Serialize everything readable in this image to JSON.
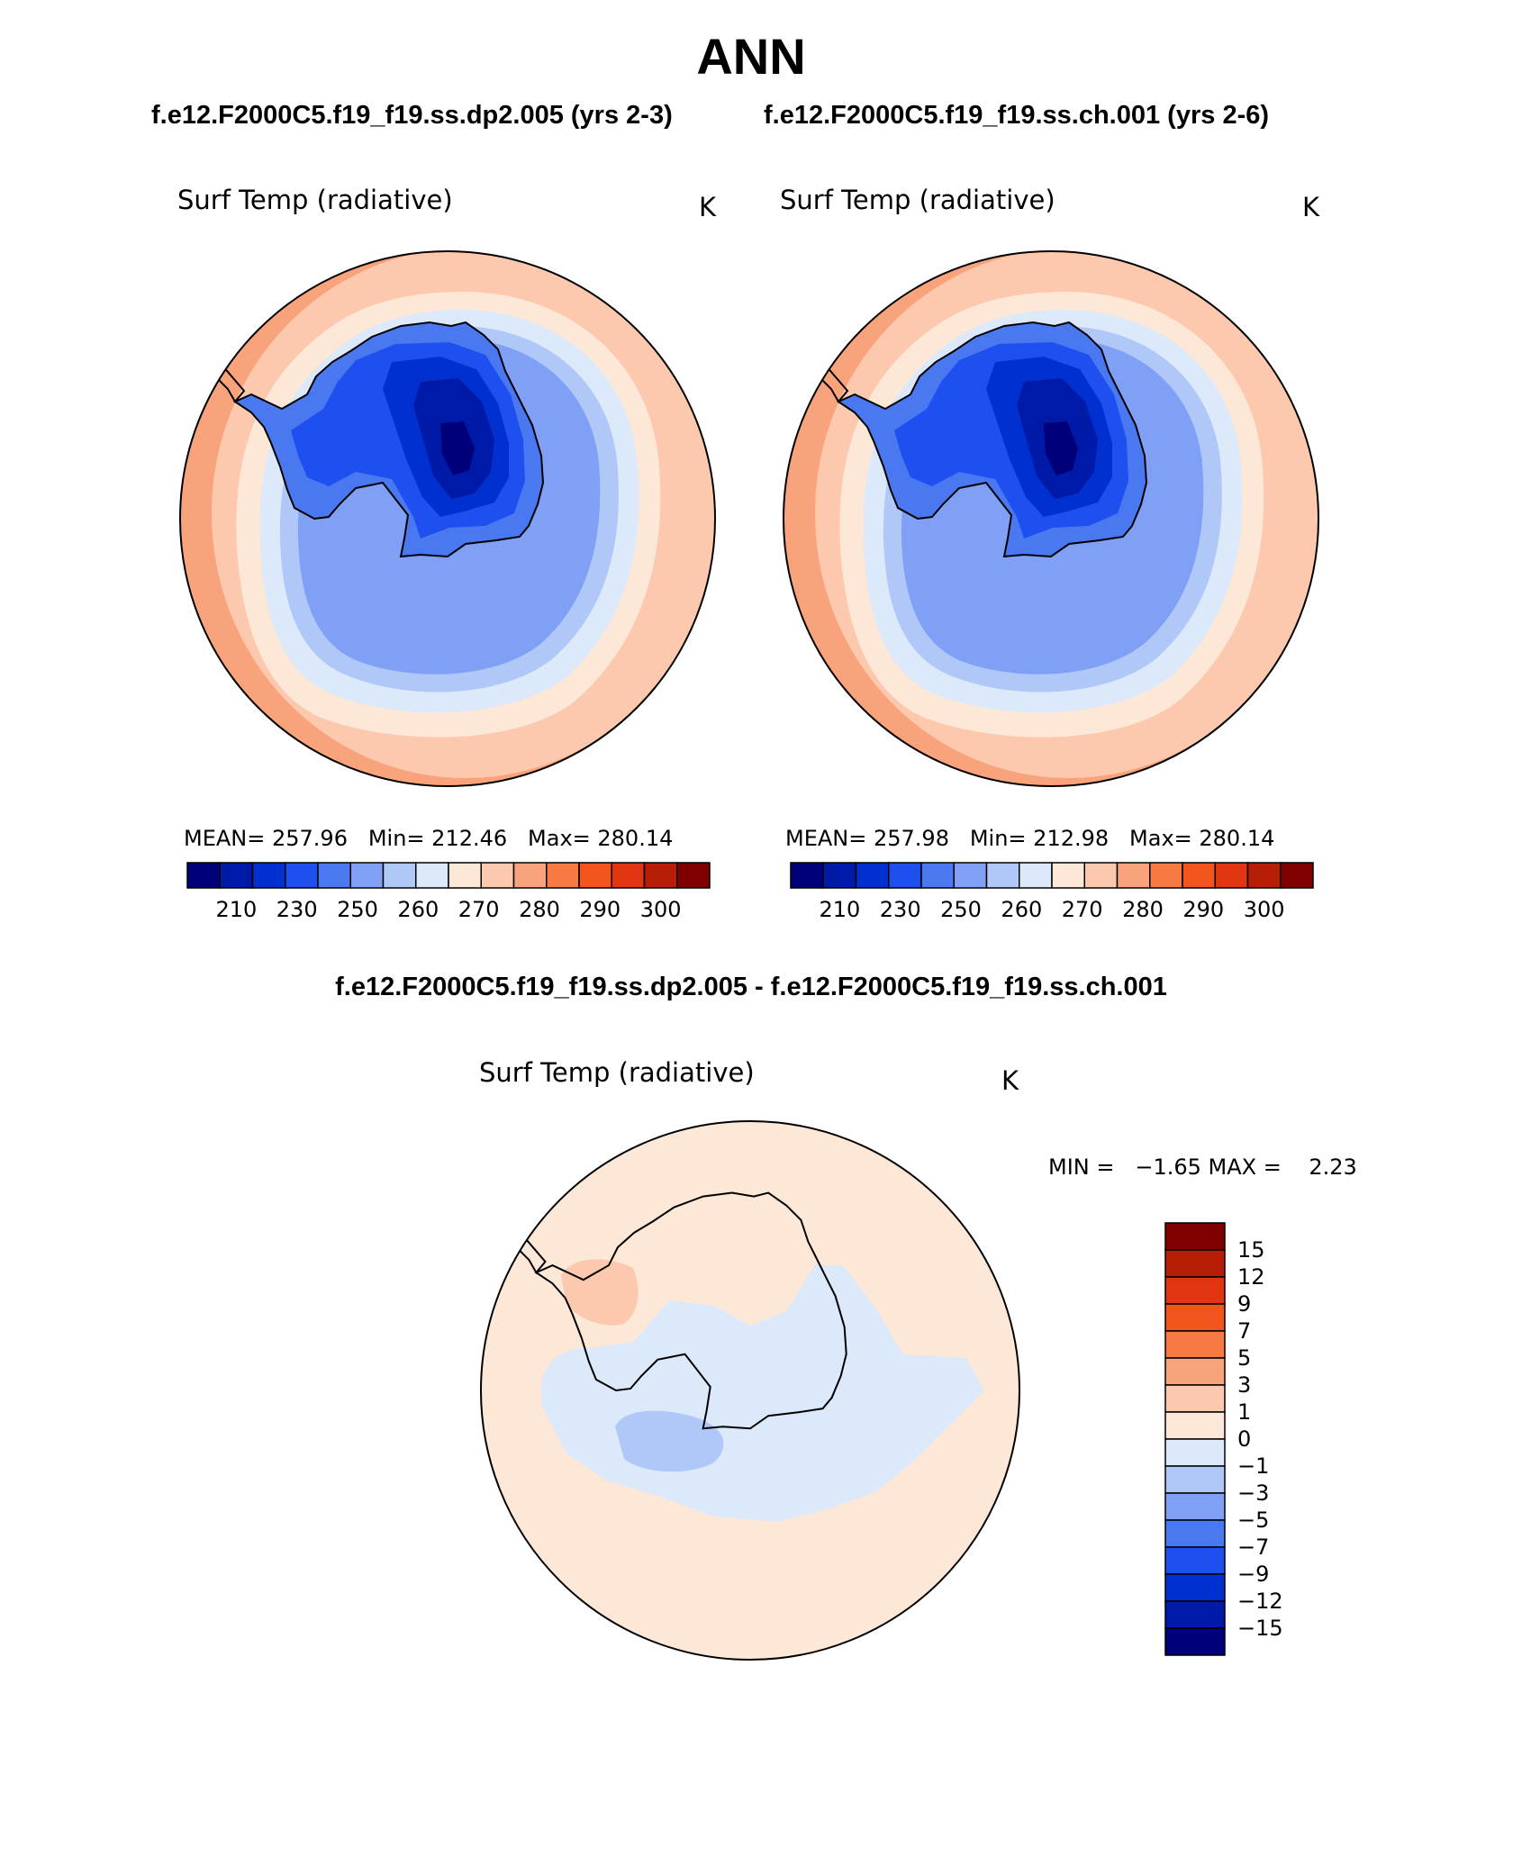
{
  "figure": {
    "season_title": "ANN",
    "case1_title": "f.e12.F2000C5.f19_f19.ss.dp2.005 (yrs 2-3)",
    "case2_title": "f.e12.F2000C5.f19_f19.ss.ch.001 (yrs 2-6)",
    "diff_title": "f.e12.F2000C5.f19_f19.ss.dp2.005 - f.e12.F2000C5.f19_f19.ss.ch.001"
  },
  "panels": [
    {
      "variable": "Surf Temp (radiative)",
      "units": "K",
      "stats": "MEAN= 257.96   Min= 212.46   Max= 280.14"
    },
    {
      "variable": "Surf Temp (radiative)",
      "units": "K",
      "stats": "MEAN= 257.98   Min= 212.98   Max= 280.14"
    }
  ],
  "diff_panel": {
    "variable": "Surf Temp (radiative)",
    "units": "K",
    "stats": "MIN =   −1.65 MAX =    2.23"
  },
  "abs_colorbar": {
    "tick_labels": [
      "210",
      "230",
      "250",
      "260",
      "270",
      "280",
      "290",
      "300"
    ],
    "colors": [
      "#00007a",
      "#001aa8",
      "#0030d0",
      "#1e50f0",
      "#4a78f0",
      "#7fa0f5",
      "#b0c8f8",
      "#dce9fb",
      "#fde7d6",
      "#fcc9ae",
      "#f9a37d",
      "#f77a45",
      "#f2541e",
      "#e03510",
      "#b81d05",
      "#800000"
    ]
  },
  "diff_colorbar": {
    "tick_labels": [
      "15",
      "12",
      "9",
      "7",
      "5",
      "3",
      "1",
      "0",
      "−1",
      "−3",
      "−5",
      "−7",
      "−9",
      "−12",
      "−15"
    ],
    "colors_top_to_bottom": [
      "#800000",
      "#b81d05",
      "#e03510",
      "#f2541e",
      "#f77a45",
      "#f9a37d",
      "#fcc9ae",
      "#fde7d6",
      "#dce9fb",
      "#b0c8f8",
      "#7fa0f5",
      "#4a78f0",
      "#1e50f0",
      "#0030d0",
      "#001aa8",
      "#00007a"
    ]
  },
  "map_colors": {
    "outer_ocean": "#f9a37d",
    "mid_ocean": "#fcc9ae",
    "sea_ice_edge": "#fde7d6",
    "ice_1": "#dce9fb",
    "ice_2": "#b0c8f8",
    "ice_3": "#7fa0f5",
    "coast_1": "#4a78f0",
    "coast_2": "#1e50f0",
    "plateau_1": "#0030d0",
    "plateau_2": "#001aa8",
    "plateau_3": "#00007a",
    "diff_background": "#fde7d6",
    "diff_negative": "#dce9fb",
    "diff_negative_2": "#b0c8f8",
    "diff_positive": "#fcc9ae"
  }
}
